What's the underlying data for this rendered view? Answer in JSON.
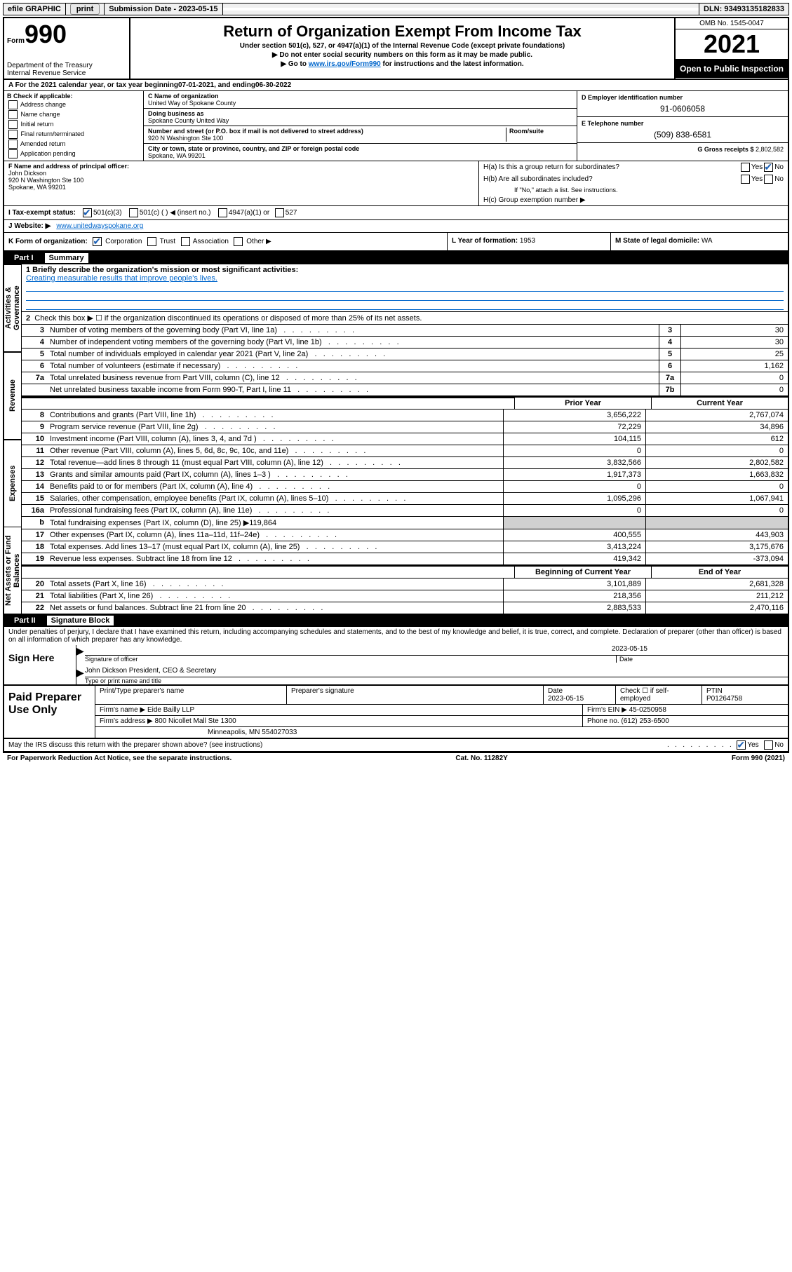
{
  "topbar": {
    "efile": "efile GRAPHIC",
    "print": "print",
    "subdate_lbl": "Submission Date - ",
    "subdate": "2023-05-15",
    "dln_lbl": "DLN: ",
    "dln": "93493135182833"
  },
  "header": {
    "form_prefix": "Form",
    "form_num": "990",
    "dept": "Department of the Treasury",
    "irs": "Internal Revenue Service",
    "title": "Return of Organization Exempt From Income Tax",
    "subtitle": "Under section 501(c), 527, or 4947(a)(1) of the Internal Revenue Code (except private foundations)",
    "note1": "▶ Do not enter social security numbers on this form as it may be made public.",
    "note2_pre": "▶ Go to ",
    "note2_link": "www.irs.gov/Form990",
    "note2_post": " for instructions and the latest information.",
    "omb": "OMB No. 1545-0047",
    "year": "2021",
    "open": "Open to Public Inspection"
  },
  "rowA": {
    "pre": "A For the 2021 calendar year, or tax year beginning ",
    "begin": "07-01-2021",
    "mid": "  , and ending ",
    "end": "06-30-2022"
  },
  "colB": {
    "head": "B Check if applicable:",
    "opts": [
      "Address change",
      "Name change",
      "Initial return",
      "Final return/terminated",
      "Amended return",
      "Application pending"
    ]
  },
  "colC": {
    "name_lbl": "C Name of organization",
    "name": "United Way of Spokane County",
    "dba_lbl": "Doing business as",
    "dba": "Spokane County United Way",
    "addr_lbl": "Number and street (or P.O. box if mail is not delivered to street address)",
    "room_lbl": "Room/suite",
    "addr": "920 N Washington Ste 100",
    "city_lbl": "City or town, state or province, country, and ZIP or foreign postal code",
    "city": "Spokane, WA  99201"
  },
  "colD": {
    "ein_lbl": "D Employer identification number",
    "ein": "91-0606058",
    "tel_lbl": "E Telephone number",
    "tel": "(509) 838-6581",
    "gross_lbl": "G Gross receipts $ ",
    "gross": "2,802,582"
  },
  "rowF": {
    "lbl": "F  Name and address of principal officer:",
    "name": "John Dickson",
    "addr1": "920 N Washington Ste 100",
    "addr2": "Spokane, WA  99201"
  },
  "rowH": {
    "ha": "H(a)  Is this a group return for subordinates?",
    "hb": "H(b)  Are all subordinates included?",
    "hb_note": "If \"No,\" attach a list. See instructions.",
    "hc": "H(c)  Group exemption number ▶",
    "yes": "Yes",
    "no": "No"
  },
  "rowI": {
    "lbl": "I    Tax-exempt status:",
    "o1": "501(c)(3)",
    "o2": "501(c) (  ) ◀ (insert no.)",
    "o3": "4947(a)(1) or",
    "o4": "527"
  },
  "rowJ": {
    "lbl": "J   Website: ▶ ",
    "val": "www.unitedwayspokane.org"
  },
  "rowK": {
    "lbl": "K Form of organization:",
    "o1": "Corporation",
    "o2": "Trust",
    "o3": "Association",
    "o4": "Other ▶",
    "l_lbl": "L Year of formation: ",
    "l_val": "1953",
    "m_lbl": "M State of legal domicile: ",
    "m_val": "WA"
  },
  "part1": {
    "tab": "Part I",
    "title": "Summary",
    "q1": "1  Briefly describe the organization's mission or most significant activities:",
    "q1val": "Creating measurable results that improve people's lives.",
    "q2": "Check this box ▶ ☐  if the organization discontinued its operations or disposed of more than 25% of its net assets.",
    "rows_gov": [
      {
        "n": "3",
        "d": "Number of voting members of the governing body (Part VI, line 1a)",
        "box": "3",
        "v": "30"
      },
      {
        "n": "4",
        "d": "Number of independent voting members of the governing body (Part VI, line 1b)",
        "box": "4",
        "v": "30"
      },
      {
        "n": "5",
        "d": "Total number of individuals employed in calendar year 2021 (Part V, line 2a)",
        "box": "5",
        "v": "25"
      },
      {
        "n": "6",
        "d": "Total number of volunteers (estimate if necessary)",
        "box": "6",
        "v": "1,162"
      },
      {
        "n": "7a",
        "d": "Total unrelated business revenue from Part VIII, column (C), line 12",
        "box": "7a",
        "v": "0"
      },
      {
        "n": "",
        "d": "Net unrelated business taxable income from Form 990-T, Part I, line 11",
        "box": "7b",
        "v": "0"
      }
    ],
    "col_prior": "Prior Year",
    "col_curr": "Current Year",
    "rev_rows": [
      {
        "n": "8",
        "d": "Contributions and grants (Part VIII, line 1h)",
        "p": "3,656,222",
        "c": "2,767,074"
      },
      {
        "n": "9",
        "d": "Program service revenue (Part VIII, line 2g)",
        "p": "72,229",
        "c": "34,896"
      },
      {
        "n": "10",
        "d": "Investment income (Part VIII, column (A), lines 3, 4, and 7d )",
        "p": "104,115",
        "c": "612"
      },
      {
        "n": "11",
        "d": "Other revenue (Part VIII, column (A), lines 5, 6d, 8c, 9c, 10c, and 11e)",
        "p": "0",
        "c": "0"
      },
      {
        "n": "12",
        "d": "Total revenue—add lines 8 through 11 (must equal Part VIII, column (A), line 12)",
        "p": "3,832,566",
        "c": "2,802,582"
      }
    ],
    "exp_rows": [
      {
        "n": "13",
        "d": "Grants and similar amounts paid (Part IX, column (A), lines 1–3 )",
        "p": "1,917,373",
        "c": "1,663,832"
      },
      {
        "n": "14",
        "d": "Benefits paid to or for members (Part IX, column (A), line 4)",
        "p": "0",
        "c": "0"
      },
      {
        "n": "15",
        "d": "Salaries, other compensation, employee benefits (Part IX, column (A), lines 5–10)",
        "p": "1,095,296",
        "c": "1,067,941"
      },
      {
        "n": "16a",
        "d": "Professional fundraising fees (Part IX, column (A), line 11e)",
        "p": "0",
        "c": "0"
      },
      {
        "n": "b",
        "d": "Total fundraising expenses (Part IX, column (D), line 25) ▶119,864",
        "p": "",
        "c": "",
        "gray": true
      },
      {
        "n": "17",
        "d": "Other expenses (Part IX, column (A), lines 11a–11d, 11f–24e)",
        "p": "400,555",
        "c": "443,903"
      },
      {
        "n": "18",
        "d": "Total expenses. Add lines 13–17 (must equal Part IX, column (A), line 25)",
        "p": "3,413,224",
        "c": "3,175,676"
      },
      {
        "n": "19",
        "d": "Revenue less expenses. Subtract line 18 from line 12",
        "p": "419,342",
        "c": "-373,094"
      }
    ],
    "col_begin": "Beginning of Current Year",
    "col_end": "End of Year",
    "net_rows": [
      {
        "n": "20",
        "d": "Total assets (Part X, line 16)",
        "p": "3,101,889",
        "c": "2,681,328"
      },
      {
        "n": "21",
        "d": "Total liabilities (Part X, line 26)",
        "p": "218,356",
        "c": "211,212"
      },
      {
        "n": "22",
        "d": "Net assets or fund balances. Subtract line 21 from line 20",
        "p": "2,883,533",
        "c": "2,470,116"
      }
    ],
    "side_gov": "Activities & Governance",
    "side_rev": "Revenue",
    "side_exp": "Expenses",
    "side_net": "Net Assets or Fund Balances"
  },
  "part2": {
    "tab": "Part II",
    "title": "Signature Block",
    "prelude": "Under penalties of perjury, I declare that I have examined this return, including accompanying schedules and statements, and to the best of my knowledge and belief, it is true, correct, and complete. Declaration of preparer (other than officer) is based on all information of which preparer has any knowledge.",
    "sign_here": "Sign Here",
    "sig_officer": "Signature of officer",
    "date_lbl": "Date",
    "date_val": "2023-05-15",
    "officer_name": "John Dickson  President, CEO & Secretary",
    "officer_sub": "Type or print name and title"
  },
  "paid": {
    "title": "Paid Preparer Use Only",
    "h1": "Print/Type preparer's name",
    "h2": "Preparer's signature",
    "h3": "Date",
    "h3v": "2023-05-15",
    "h4": "Check ☐ if self-employed",
    "h5": "PTIN",
    "h5v": "P01264758",
    "firm_lbl": "Firm's name    ▶ ",
    "firm": "Eide Bailly LLP",
    "ein_lbl": "Firm's EIN ▶ ",
    "ein": "45-0250958",
    "addr_lbl": "Firm's address ▶ ",
    "addr": "800 Nicollet Mall Ste 1300",
    "addr2": "Minneapolis, MN  554027033",
    "phone_lbl": "Phone no. ",
    "phone": "(612) 253-6500"
  },
  "bottom": {
    "discuss": "May the IRS discuss this return with the preparer shown above? (see instructions)",
    "yes": "Yes",
    "no": "No",
    "pra": "For Paperwork Reduction Act Notice, see the separate instructions.",
    "cat": "Cat. No. 11282Y",
    "form": "Form 990 (2021)"
  }
}
